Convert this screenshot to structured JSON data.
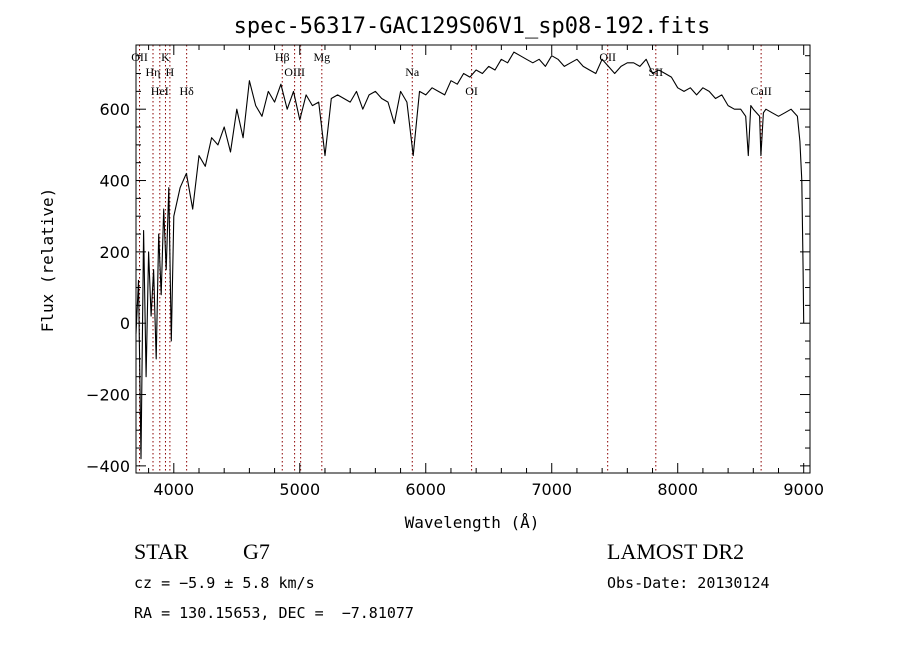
{
  "chart_data": {
    "type": "line",
    "title": "spec-56317-GAC129S06V1_sp08-192.fits",
    "xlabel": "Wavelength (Å)",
    "ylabel": "Flux (relative)",
    "xlim": [
      3700,
      9050
    ],
    "ylim": [
      -420,
      780
    ],
    "x_ticks": [
      4000,
      5000,
      6000,
      7000,
      8000,
      9000
    ],
    "y_ticks": [
      -400,
      -200,
      0,
      200,
      400,
      600
    ],
    "grid": false,
    "legend": "none",
    "line_color": "#000000",
    "marker_color": "#8b0000",
    "series": [
      {
        "x": [
          3700,
          3720,
          3740,
          3760,
          3780,
          3800,
          3820,
          3840,
          3860,
          3880,
          3900,
          3920,
          3940,
          3960,
          3980,
          4000,
          4050,
          4100,
          4150,
          4200,
          4250,
          4300,
          4350,
          4400,
          4450,
          4500,
          4550,
          4600,
          4650,
          4700,
          4750,
          4800,
          4850,
          4900,
          4950,
          5000,
          5050,
          5100,
          5150,
          5200,
          5250,
          5300,
          5350,
          5400,
          5450,
          5500,
          5550,
          5600,
          5650,
          5700,
          5750,
          5800,
          5850,
          5900,
          5950,
          6000,
          6050,
          6100,
          6150,
          6200,
          6250,
          6300,
          6350,
          6400,
          6450,
          6500,
          6550,
          6600,
          6650,
          6700,
          6750,
          6800,
          6850,
          6900,
          6950,
          7000,
          7050,
          7100,
          7150,
          7200,
          7250,
          7300,
          7350,
          7400,
          7450,
          7500,
          7550,
          7600,
          7650,
          7700,
          7750,
          7800,
          7850,
          7900,
          7950,
          8000,
          8050,
          8100,
          8150,
          8200,
          8250,
          8300,
          8350,
          8400,
          8450,
          8500,
          8540,
          8560,
          8580,
          8600,
          8650,
          8660,
          8680,
          8700,
          8750,
          8800,
          8850,
          8900,
          8950,
          8970,
          8985,
          8995,
          9000
        ],
        "y": [
          -30,
          120,
          -380,
          260,
          -150,
          200,
          20,
          150,
          -100,
          250,
          80,
          320,
          150,
          380,
          -50,
          300,
          380,
          420,
          320,
          470,
          440,
          520,
          500,
          550,
          480,
          600,
          520,
          680,
          610,
          580,
          650,
          620,
          670,
          600,
          650,
          570,
          640,
          610,
          620,
          470,
          630,
          640,
          630,
          620,
          650,
          600,
          640,
          650,
          630,
          620,
          560,
          650,
          620,
          470,
          650,
          640,
          660,
          650,
          640,
          680,
          670,
          700,
          690,
          710,
          700,
          720,
          710,
          740,
          730,
          760,
          750,
          740,
          730,
          740,
          720,
          750,
          740,
          720,
          730,
          740,
          720,
          710,
          700,
          740,
          720,
          700,
          720,
          730,
          730,
          720,
          740,
          700,
          710,
          700,
          690,
          660,
          650,
          660,
          640,
          660,
          650,
          630,
          640,
          610,
          600,
          600,
          580,
          470,
          610,
          600,
          580,
          470,
          590,
          600,
          590,
          580,
          590,
          600,
          580,
          510,
          400,
          150,
          0
        ]
      }
    ],
    "line_markers": [
      {
        "x": 3728,
        "label": "OII"
      },
      {
        "x": 3835,
        "label": "Hη"
      },
      {
        "x": 3889,
        "label": "HeI"
      },
      {
        "x": 3934,
        "label": "K"
      },
      {
        "x": 3969,
        "label": "H"
      },
      {
        "x": 4102,
        "label": "Hδ"
      },
      {
        "x": 4861,
        "label": "Hβ"
      },
      {
        "x": 4959,
        "label": "OIII"
      },
      {
        "x": 5007,
        "label": ""
      },
      {
        "x": 5175,
        "label": "Mg"
      },
      {
        "x": 5893,
        "label": "Na"
      },
      {
        "x": 6364,
        "label": "OI"
      },
      {
        "x": 7444,
        "label": "OII"
      },
      {
        "x": 7826,
        "label": "SII"
      },
      {
        "x": 8662,
        "label": "CaII"
      }
    ]
  },
  "info": {
    "object_type": "STAR",
    "subclass": "G7",
    "redshift_text": "cz = −5.9 ± 5.8 km/s",
    "coords_text": "RA = 130.15653, DEC =  −7.81077",
    "survey": "LAMOST DR2",
    "obs_date_text": "Obs-Date: 20130124"
  }
}
